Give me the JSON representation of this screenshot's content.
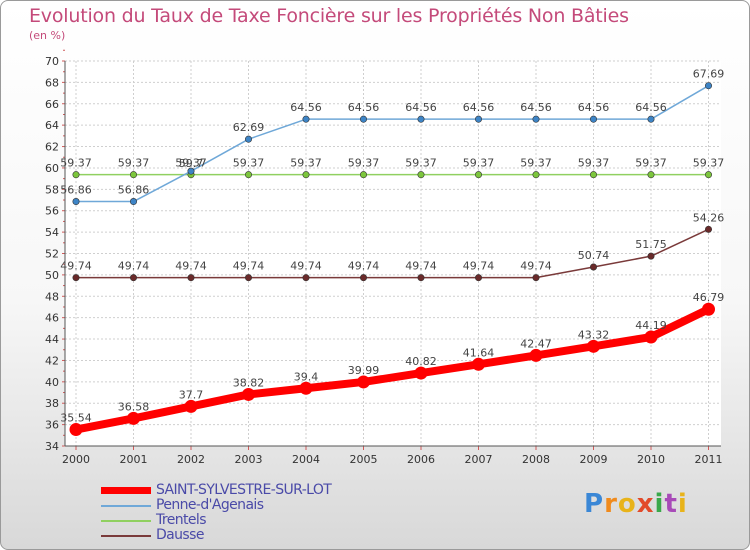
{
  "title": "Evolution du Taux de Taxe Foncière sur les Propriétés Non Bâties",
  "subtitle": "(en %)",
  "logo": {
    "text": "Proxiti",
    "letter_colors": [
      "#3a87d6",
      "#f08a1c",
      "#e8b31a",
      "#e24a2a",
      "#3aa84a",
      "#a84ab8",
      "#e8b31a"
    ]
  },
  "chart_data": {
    "type": "line",
    "title": "Evolution du Taux de Taxe Foncière sur les Propriétés Non Bâties",
    "ylabel": "(en %)",
    "xlabel": "",
    "ylim": [
      34,
      70
    ],
    "ytick_step": 2,
    "grid": true,
    "categories": [
      "2000",
      "2001",
      "2002",
      "2003",
      "2004",
      "2005",
      "2006",
      "2007",
      "2008",
      "2009",
      "2010",
      "2011"
    ],
    "series": [
      {
        "name": "SAINT-SYLVESTRE-SUR-LOT",
        "color": "#ff0000",
        "emphasis": "thick",
        "values": [
          35.54,
          36.58,
          37.7,
          38.82,
          39.4,
          39.99,
          40.82,
          41.64,
          42.47,
          43.32,
          44.19,
          46.79
        ],
        "labels": [
          "35.54",
          "36.58",
          "37.7",
          "38.82",
          "39.4",
          "39.99",
          "40.82",
          "41.64",
          "42.47",
          "43.32",
          "44.19",
          "46.79"
        ]
      },
      {
        "name": "Penne-d'Agenais",
        "color": "#6fa8d8",
        "marker": "#3d84c6",
        "values": [
          56.86,
          56.86,
          59.7,
          62.69,
          64.56,
          64.56,
          64.56,
          64.56,
          64.56,
          64.56,
          64.56,
          67.69
        ],
        "labels": [
          "56.86",
          "56.86",
          "59.7",
          "62.69",
          "64.56",
          "64.56",
          "64.56",
          "64.56",
          "64.56",
          "64.56",
          "64.56",
          "67.69"
        ]
      },
      {
        "name": "Trentels",
        "color": "#90d060",
        "marker": "#7cc63c",
        "values": [
          59.37,
          59.37,
          59.37,
          59.37,
          59.37,
          59.37,
          59.37,
          59.37,
          59.37,
          59.37,
          59.37,
          59.37
        ],
        "labels": [
          "59.37",
          "59.37",
          "59.37",
          "59.37",
          "59.37",
          "59.37",
          "59.37",
          "59.37",
          "59.37",
          "59.37",
          "59.37",
          "59.37"
        ]
      },
      {
        "name": "Dausse",
        "color": "#7a3a3a",
        "marker": "#6a2a2a",
        "values": [
          49.74,
          49.74,
          49.74,
          49.74,
          49.74,
          49.74,
          49.74,
          49.74,
          49.74,
          50.74,
          51.75,
          54.26
        ],
        "labels": [
          "49.74",
          "49.74",
          "49.74",
          "49.74",
          "49.74",
          "49.74",
          "49.74",
          "49.74",
          "49.74",
          "50.74",
          "51.75",
          "54.26"
        ]
      }
    ]
  }
}
